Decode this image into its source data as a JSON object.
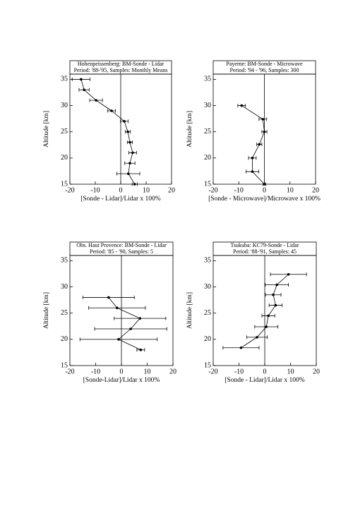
{
  "chart_data": [
    {
      "type": "line",
      "title": "Hohenpeissenberg: BM-Sonde - Lidar",
      "subtitle": "Period: '88-'95, Samples: Monthly Means",
      "xlabel": "[Sonde - Lidar]/Lidar x 100%",
      "ylabel": "Altitude [km]",
      "x": [
        -15.6,
        -14.4,
        -9.7,
        -3.6,
        1.4,
        2.8,
        3.6,
        4.7,
        3.6,
        3,
        5.5
      ],
      "xerr": [
        3.5,
        2,
        2.5,
        1.5,
        1.5,
        1,
        1,
        1.5,
        2,
        4.5,
        1
      ],
      "y": [
        35,
        33,
        31,
        29,
        27,
        25,
        23,
        21,
        19,
        17,
        15
      ],
      "xlim": [
        -20,
        20
      ],
      "ylim": [
        15,
        36
      ],
      "xticks": [
        -20,
        -10,
        0,
        10,
        20
      ],
      "yticks": [
        15,
        20,
        25,
        30,
        35
      ],
      "color": "#000000"
    },
    {
      "type": "line",
      "title": "Payerne: BM-Sonde - Microwave",
      "subtitle": "Period: '94 - '96, Samples: 300",
      "xlabel": "[Sonde - Microwave]/Microwave x 100%",
      "ylabel": "Altitude [km]",
      "x": [
        -8.9,
        -0.6,
        0,
        -2,
        -4.7,
        -4.7,
        0
      ],
      "xerr": [
        1.5,
        1.5,
        1,
        1,
        1.5,
        2.5,
        0.5
      ],
      "y": [
        30,
        27.4,
        25,
        22.6,
        20,
        17.4,
        15
      ],
      "xlim": [
        -20,
        20
      ],
      "ylim": [
        15,
        36
      ],
      "xticks": [
        -20,
        -10,
        0,
        10,
        20
      ],
      "yticks": [
        15,
        20,
        25,
        30,
        35
      ],
      "color": "#000000"
    },
    {
      "type": "line",
      "title": "Obs. Haut Provence: BM-Sonde - Lidar",
      "subtitle": "Period: '85 - '90, Samples: 5",
      "xlabel": "[Sonde-Lidar]/Lidar x 100%",
      "ylabel": "Altitude [km]",
      "x": [
        -5,
        -1.7,
        7.2,
        3.6,
        -1.1,
        7.5
      ],
      "xerr": [
        10,
        11,
        10,
        14,
        15,
        1.5
      ],
      "y": [
        28,
        26,
        24,
        22,
        20,
        18
      ],
      "xlim": [
        -20,
        20
      ],
      "ylim": [
        15,
        36
      ],
      "xticks": [
        -20,
        -10,
        0,
        10,
        20
      ],
      "yticks": [
        15,
        20,
        25,
        30,
        35
      ],
      "color": "#000000"
    },
    {
      "type": "line",
      "title": "Tsukuba: KC79-Sonde - Lidar",
      "subtitle": "Period: '88-'91, Samples: 45",
      "xlabel": "[Sonde - Lidar]/Lidar x 100%",
      "ylabel": "Altitude [km]",
      "x": [
        9.2,
        4.7,
        3.3,
        4.2,
        1.4,
        0.6,
        -3,
        -9.2
      ],
      "xerr": [
        7,
        4.5,
        3,
        2.5,
        2.5,
        4.5,
        4,
        7
      ],
      "y": [
        32.4,
        30.4,
        28.5,
        26.5,
        24.5,
        22.4,
        20.4,
        18.4
      ],
      "xlim": [
        -20,
        20
      ],
      "ylim": [
        15,
        36
      ],
      "xticks": [
        -20,
        -10,
        0,
        10,
        20
      ],
      "yticks": [
        15,
        20,
        25,
        30,
        35
      ],
      "color": "#000000"
    }
  ]
}
